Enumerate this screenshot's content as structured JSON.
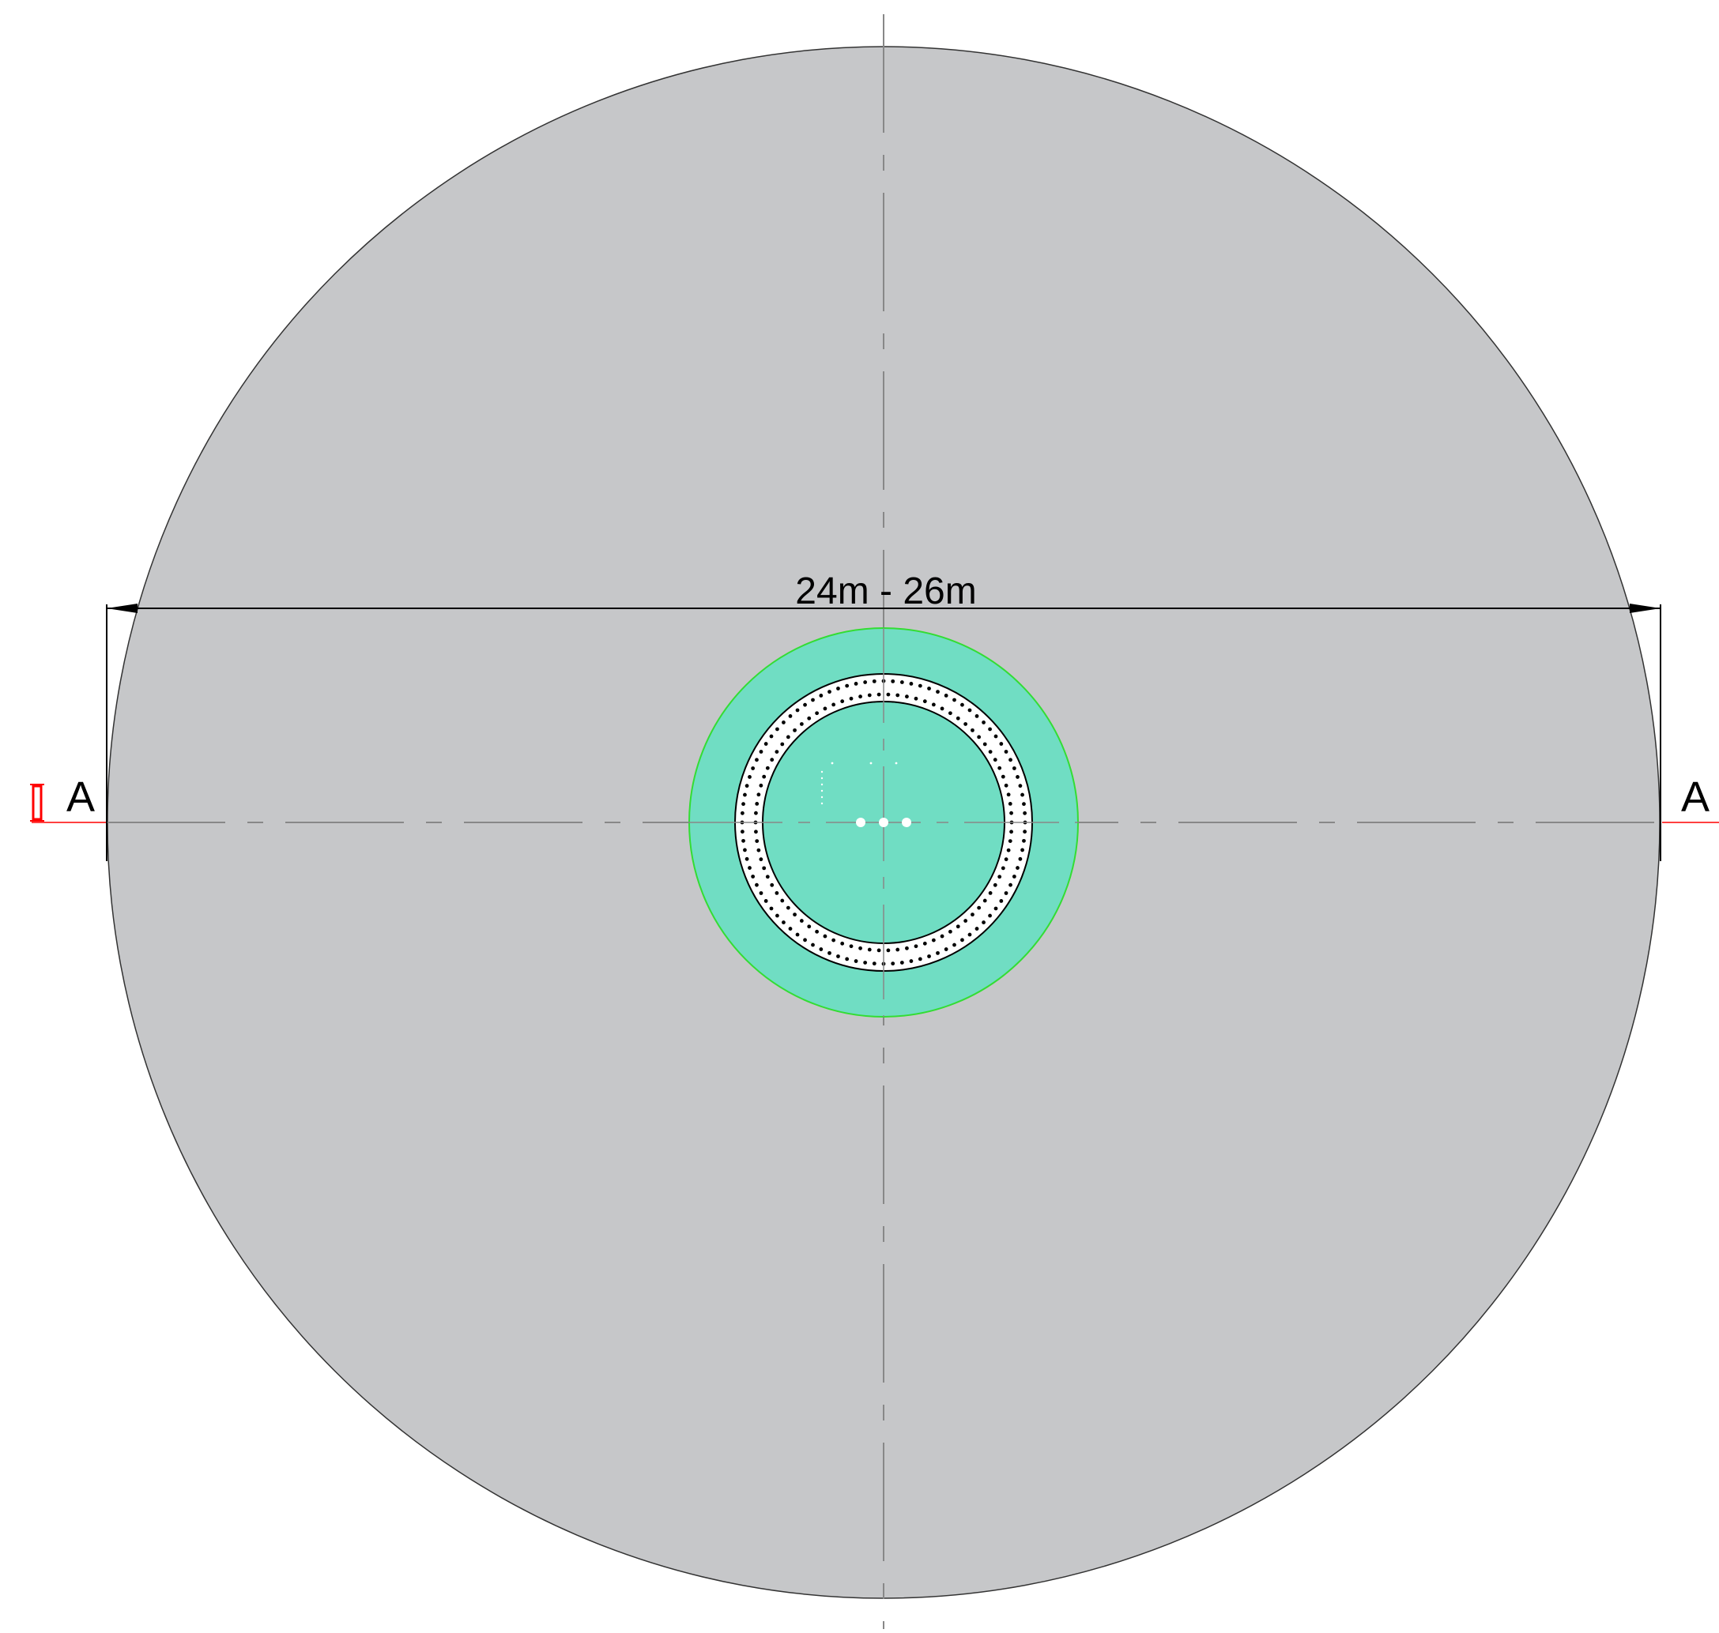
{
  "drawing": {
    "dimension_label": "24m - 26m",
    "section_label_left": "A",
    "section_label_right": "A"
  },
  "colors": {
    "foundation_fill": "#c6c7c9",
    "pedestal_fill": "#70ddc3",
    "pedestal_outline": "#33dd33",
    "bolt_ring_fill": "#ffffff",
    "bolt_color": "#000000",
    "centerline_color": "#888888",
    "section_marker_color": "#ff0000",
    "outline_color": "#333333"
  },
  "icons": {
    "section_marker": "section-cut-marker-icon",
    "dimension_arrow": "arrowhead-icon"
  }
}
